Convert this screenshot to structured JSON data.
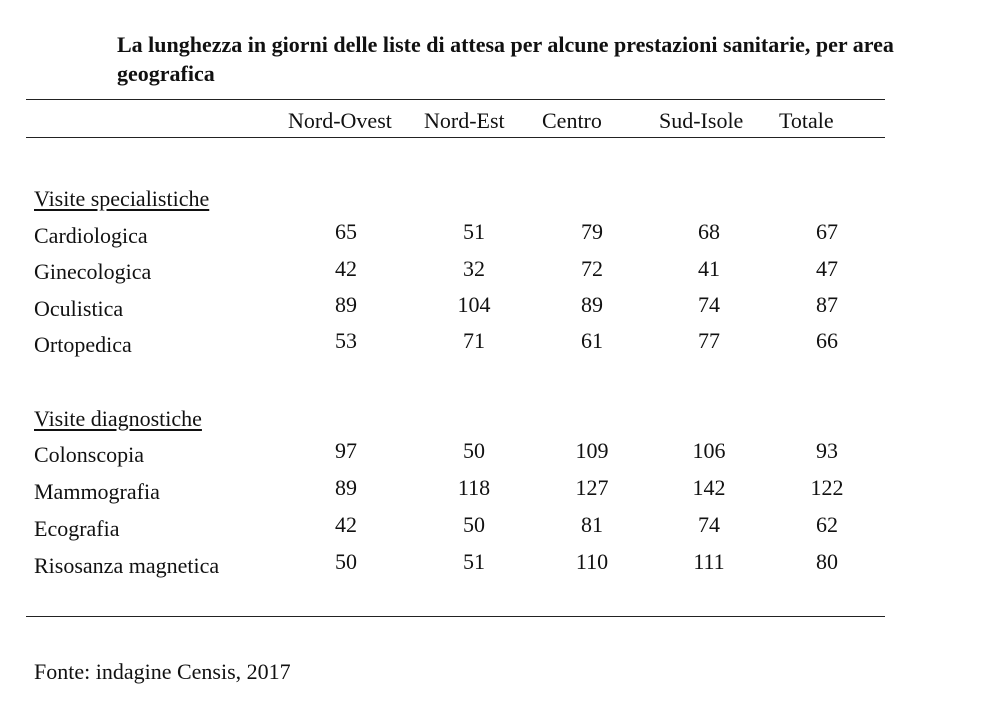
{
  "title": "La lunghezza in giorni delle liste di attesa per alcune prestazioni sanitarie, per area geografica",
  "columns": [
    "Nord-Ovest",
    "Nord-Est",
    "Centro",
    "Sud-Isole",
    "Totale"
  ],
  "sections": [
    {
      "label": "Visite specialistiche",
      "rows": [
        {
          "label": "Cardiologica",
          "values": [
            "65",
            "51",
            "79",
            "68",
            "67"
          ]
        },
        {
          "label": "Ginecologica",
          "values": [
            "42",
            "32",
            "72",
            "41",
            "47"
          ]
        },
        {
          "label": "Oculistica",
          "values": [
            "89",
            "104",
            "89",
            "74",
            "87"
          ]
        },
        {
          "label": "Ortopedica",
          "values": [
            "53",
            "71",
            "61",
            "77",
            "66"
          ]
        }
      ]
    },
    {
      "label": "Visite diagnostiche",
      "rows": [
        {
          "label": "Colonscopia",
          "values": [
            "97",
            "50",
            "109",
            "106",
            "93"
          ]
        },
        {
          "label": "Mammografia",
          "values": [
            "89",
            "118",
            "127",
            "142",
            "122"
          ]
        },
        {
          "label": "Ecografia",
          "values": [
            "42",
            "50",
            "81",
            "74",
            "62"
          ]
        },
        {
          "label": "Risosanza magnetica",
          "values": [
            "50",
            "51",
            "110",
            "111",
            "80"
          ]
        }
      ]
    }
  ],
  "source": "Fonte: indagine Censis, 2017"
}
